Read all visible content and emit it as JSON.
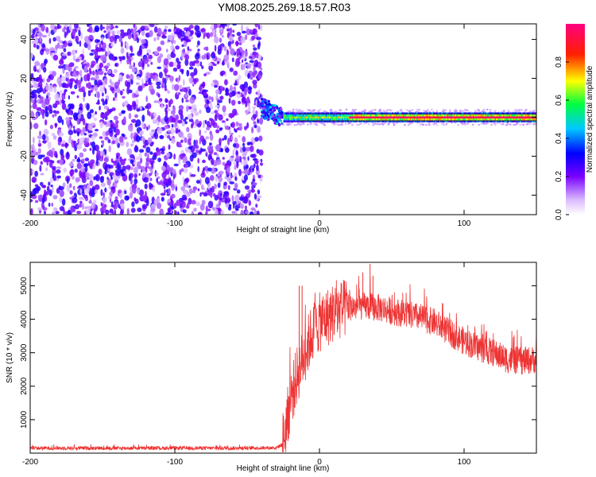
{
  "title": "YM08.2025.269.18.57.R03",
  "chart_data": [
    {
      "type": "heatmap",
      "xlabel": "Height of straight line (km)",
      "ylabel": "Frequency (Hz)",
      "xlim": [
        -200,
        150
      ],
      "ylim": [
        -50,
        48
      ],
      "xticks": [
        -200,
        -100,
        0,
        100
      ],
      "yticks": [
        -40,
        -20,
        0,
        20,
        40
      ],
      "colorbar": {
        "label": "Normalized spectral amplitude",
        "range": [
          0,
          1
        ],
        "ticks": [
          0.0,
          0.2,
          0.4,
          0.6,
          0.8
        ],
        "tick_labels": [
          "0.0",
          "0.2",
          "0.4",
          "0.6",
          "0.8"
        ],
        "colormap": "rainbow (white→purple→blue→cyan→green→yellow→red→magenta)"
      },
      "regions": [
        {
          "name": "noise",
          "x_range": [
            -200,
            -40
          ],
          "description_color": "purple speckle",
          "amplitude_approx": 0.15
        },
        {
          "name": "transition",
          "x_range": [
            -40,
            -25
          ],
          "center_frequency": 5,
          "amplitude_approx": 0.35
        },
        {
          "name": "signal",
          "x_range": [
            -25,
            150
          ],
          "center_frequency": 0,
          "band_halfwidth_hz": 2,
          "peak_amplitude": 1.0
        }
      ]
    },
    {
      "type": "line",
      "xlabel": "Height of straight line (km)",
      "ylabel": "SNR (10 * v/v)",
      "xlim": [
        -200,
        150
      ],
      "ylim": [
        0,
        5700
      ],
      "xticks": [
        -200,
        -100,
        0,
        100
      ],
      "yticks": [
        1000,
        2000,
        3000,
        4000,
        5000
      ],
      "line_color": "#ee3333",
      "envelope_points": [
        [
          -200,
          150
        ],
        [
          -150,
          150
        ],
        [
          -100,
          150
        ],
        [
          -50,
          150
        ],
        [
          -30,
          160
        ],
        [
          -26,
          250
        ],
        [
          -24,
          600
        ],
        [
          -20,
          1600
        ],
        [
          -15,
          2400
        ],
        [
          -10,
          3000
        ],
        [
          -5,
          3600
        ],
        [
          0,
          3900
        ],
        [
          10,
          4200
        ],
        [
          20,
          4350
        ],
        [
          30,
          4400
        ],
        [
          40,
          4350
        ],
        [
          50,
          4250
        ],
        [
          60,
          4150
        ],
        [
          70,
          4050
        ],
        [
          80,
          3900
        ],
        [
          90,
          3600
        ],
        [
          100,
          3350
        ],
        [
          110,
          3150
        ],
        [
          120,
          3000
        ],
        [
          130,
          2800
        ],
        [
          140,
          2750
        ],
        [
          150,
          2800
        ]
      ],
      "spikes": [
        {
          "x": -14,
          "y": 5000
        },
        {
          "x": -12,
          "y": 5000
        },
        {
          "x": 35,
          "y": 5650
        },
        {
          "x": 30,
          "y": 5400
        },
        {
          "x": 37,
          "y": 5300
        }
      ]
    }
  ]
}
